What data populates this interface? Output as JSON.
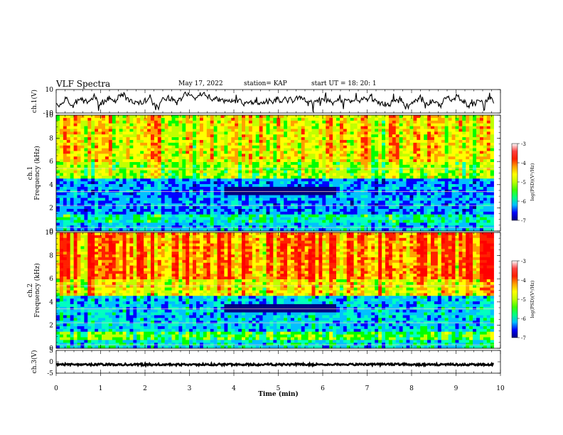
{
  "header": {
    "title": "VLF Spectra",
    "date": "May 17, 2022",
    "station": "station= KAP",
    "start": "start  UT  =   18: 20: 1"
  },
  "chart_data": [
    {
      "type": "line",
      "name": "ch1-waveform",
      "ylabel": "ch.1(V)",
      "ylim": [
        -10,
        10
      ],
      "yticks": [
        "10",
        "-10"
      ],
      "xlim": [
        0,
        10
      ],
      "x_end": 9.85,
      "seed": 11,
      "level": 0,
      "noise": 4.5,
      "color": "#000000"
    },
    {
      "type": "heatmap",
      "name": "ch1-spectrogram",
      "ylabel": "ch.1\nFrequency (kHz)",
      "ylim": [
        0,
        10
      ],
      "yticks": [
        0,
        2,
        4,
        6,
        8,
        10
      ],
      "xlim": [
        0,
        10
      ],
      "x_end": 9.85,
      "seed": 3,
      "top_level": 0.72,
      "mid_level": 0.45,
      "low_level": 0.25,
      "colorbar": {
        "label": "log(PSD)(V²/Hz)",
        "ticks": [
          "-3",
          "-4",
          "-5",
          "-6",
          "-7"
        ],
        "range": [
          -7,
          -3
        ]
      }
    },
    {
      "type": "heatmap",
      "name": "ch2-spectrogram",
      "ylabel": "ch.2\nFrequency (kHz)",
      "ylim": [
        0,
        10
      ],
      "yticks": [
        0,
        2,
        4,
        6,
        8,
        10
      ],
      "xlim": [
        0,
        10
      ],
      "x_end": 9.85,
      "seed": 7,
      "top_level": 0.86,
      "mid_level": 0.55,
      "low_level": 0.3,
      "colorbar": {
        "label": "log(PSD)(V²/Hz)",
        "ticks": [
          "-3",
          "-4",
          "-5",
          "-6",
          "-7"
        ],
        "range": [
          -7,
          -3
        ]
      }
    },
    {
      "type": "line",
      "name": "ch3-waveform",
      "ylabel": "ch.3(V)",
      "ylim": [
        -5,
        5
      ],
      "yticks": [
        "5",
        "0",
        "-5"
      ],
      "xlim": [
        0,
        10
      ],
      "x_end": 9.85,
      "seed": 19,
      "level": 0,
      "noise": 0.9,
      "color": "#000000"
    }
  ],
  "x_axis": {
    "label": "Time  (min)",
    "ticks": [
      "0",
      "1",
      "2",
      "3",
      "4",
      "5",
      "6",
      "7",
      "8",
      "9",
      "10"
    ]
  },
  "colors": {
    "colormap": [
      "#000080",
      "#0000ff",
      "#00c0ff",
      "#00ffc0",
      "#00ff00",
      "#c0ff00",
      "#ffff00",
      "#ffa000",
      "#ff2000",
      "#ff0000",
      "#ffffff"
    ]
  }
}
